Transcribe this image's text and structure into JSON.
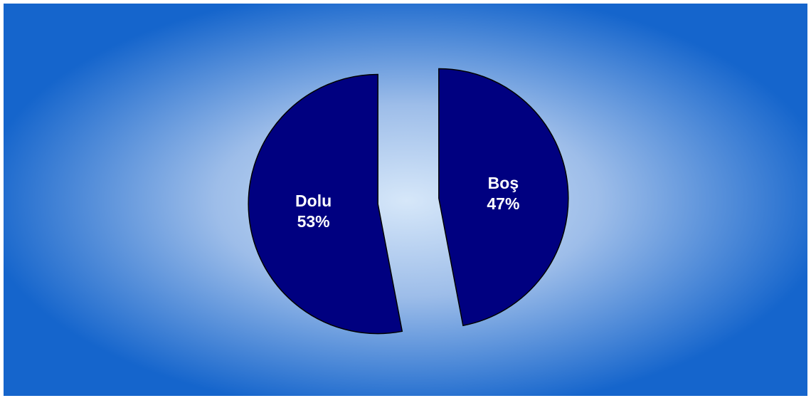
{
  "chart_data": {
    "type": "pie",
    "categories": [
      "Boş",
      "Dolu"
    ],
    "values": [
      47,
      53
    ],
    "value_labels": [
      "47%",
      "53%"
    ],
    "colors": [
      "#000080",
      "#000080"
    ],
    "start_angle": 0,
    "direction": "clockwise",
    "exploded": true
  }
}
